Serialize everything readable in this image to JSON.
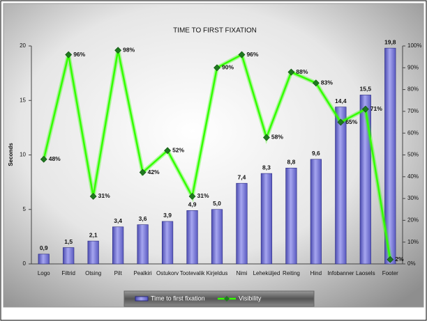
{
  "chart_data": {
    "type": "bar",
    "title": "TIME TO FIRST FIXATION",
    "ylabel": "Seconds",
    "categories": [
      "Logo",
      "Filtrid",
      "Otsing",
      "Pilt",
      "Pealkiri",
      "Ostukorv",
      "Tootevalik",
      "Kirjeldus",
      "Nimi",
      "Leheküljed",
      "Reiting",
      "Hind",
      "Infobanner",
      "Laosels",
      "Footer"
    ],
    "series": [
      {
        "name": "Time to first fixation",
        "type": "bar",
        "color": "#7b7bdc",
        "values": [
          0.9,
          1.5,
          2.1,
          3.4,
          3.6,
          3.9,
          4.9,
          5.0,
          7.4,
          8.3,
          8.8,
          9.6,
          14.4,
          15.5,
          19.8
        ],
        "value_labels": [
          "0,9",
          "1,5",
          "2,1",
          "3,4",
          "3,6",
          "3,9",
          "4,9",
          "5,0",
          "7,4",
          "8,3",
          "8,8",
          "9,6",
          "14,4",
          "15,5",
          "19,8"
        ]
      },
      {
        "name": "Visibility",
        "type": "line",
        "axis": "y2",
        "color": "#33ff00",
        "marker_color": "#1f7a1f",
        "values": [
          48,
          96,
          31,
          98,
          42,
          52,
          31,
          90,
          96,
          58,
          88,
          83,
          65,
          71,
          2
        ],
        "value_labels": [
          "48%",
          "96%",
          "31%",
          "98%",
          "42%",
          "52%",
          "31%",
          "90%",
          "96%",
          "58%",
          "88%",
          "83%",
          "65%",
          "71%",
          "2%"
        ]
      }
    ],
    "ylim": [
      0,
      20
    ],
    "yticks": [
      0,
      5,
      10,
      15,
      20
    ],
    "y2lim": [
      0,
      100
    ],
    "y2ticks": [
      {
        "value": 0,
        "label": "0%"
      },
      {
        "value": 10,
        "label": "10%"
      },
      {
        "value": 20,
        "label": "20%"
      },
      {
        "value": 30,
        "label": "30%"
      },
      {
        "value": 40,
        "label": "40%"
      },
      {
        "value": 50,
        "label": "50%"
      },
      {
        "value": 60,
        "label": "60%"
      },
      {
        "value": 70,
        "label": "70%"
      },
      {
        "value": 80,
        "label": "80%"
      },
      {
        "value": 90,
        "label": "90%"
      },
      {
        "value": 100,
        "label": "100%"
      }
    ],
    "legend": "bottom",
    "grid": false
  }
}
